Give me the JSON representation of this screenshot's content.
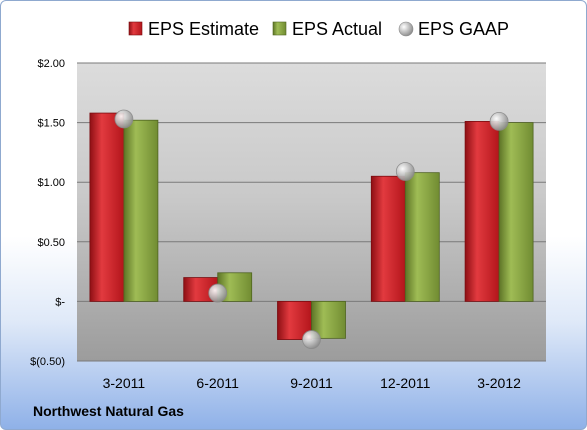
{
  "company_name": "Northwest Natural Gas",
  "chart_data": {
    "type": "bar",
    "categories": [
      "3-2011",
      "6-2011",
      "9-2011",
      "12-2011",
      "3-2012"
    ],
    "series": [
      {
        "name": "EPS Estimate",
        "kind": "bar",
        "color": "#c8161d",
        "values": [
          1.58,
          0.2,
          -0.32,
          1.05,
          1.51
        ]
      },
      {
        "name": "EPS Actual",
        "kind": "bar",
        "color": "#7f9a3a",
        "values": [
          1.52,
          0.24,
          -0.31,
          1.08,
          1.5
        ]
      },
      {
        "name": "EPS GAAP",
        "kind": "marker",
        "color": "#b8b8b8",
        "values": [
          1.53,
          0.07,
          -0.32,
          1.09,
          1.51
        ]
      }
    ],
    "yticks": [
      {
        "value": 2.0,
        "label": "$2.00"
      },
      {
        "value": 1.5,
        "label": "$1.50"
      },
      {
        "value": 1.0,
        "label": "$1.00"
      },
      {
        "value": 0.5,
        "label": "$0.50"
      },
      {
        "value": 0.0,
        "label": "$-"
      },
      {
        "value": -0.5,
        "label": "$(0.50)"
      }
    ],
    "ylim": [
      -0.5,
      2.0
    ],
    "grid": true,
    "legend_position": "top"
  }
}
